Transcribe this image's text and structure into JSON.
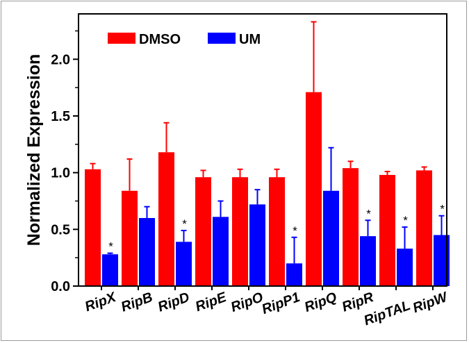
{
  "chart_data": {
    "type": "bar",
    "title": "",
    "xlabel": "",
    "ylabel": "Normalized Expression",
    "ylim": [
      0,
      2.4
    ],
    "yticks": [
      "0.0",
      "0.5",
      "1.0",
      "1.5",
      "2.0"
    ],
    "categories": [
      "RipX",
      "RipB",
      "RipD",
      "RipE",
      "RipO",
      "RipP1",
      "RipQ",
      "RipR",
      "RipTAL",
      "RipW"
    ],
    "series": [
      {
        "name": "DMSO",
        "color": "#ff0000",
        "values": [
          1.03,
          0.84,
          1.18,
          0.96,
          0.96,
          0.96,
          1.71,
          1.04,
          0.98,
          1.02
        ],
        "errors": [
          0.05,
          0.28,
          0.26,
          0.06,
          0.07,
          0.07,
          0.62,
          0.06,
          0.03,
          0.03
        ]
      },
      {
        "name": "UM",
        "color": "#0000ff",
        "values": [
          0.28,
          0.6,
          0.39,
          0.61,
          0.72,
          0.2,
          0.84,
          0.44,
          0.33,
          0.45
        ],
        "errors": [
          0.01,
          0.1,
          0.1,
          0.14,
          0.13,
          0.23,
          0.38,
          0.14,
          0.19,
          0.17
        ]
      }
    ],
    "significance": [
      "*",
      "",
      "*",
      "",
      "",
      "*",
      "",
      "*",
      "*",
      "*"
    ],
    "legend": {
      "placement": "top-left"
    }
  }
}
